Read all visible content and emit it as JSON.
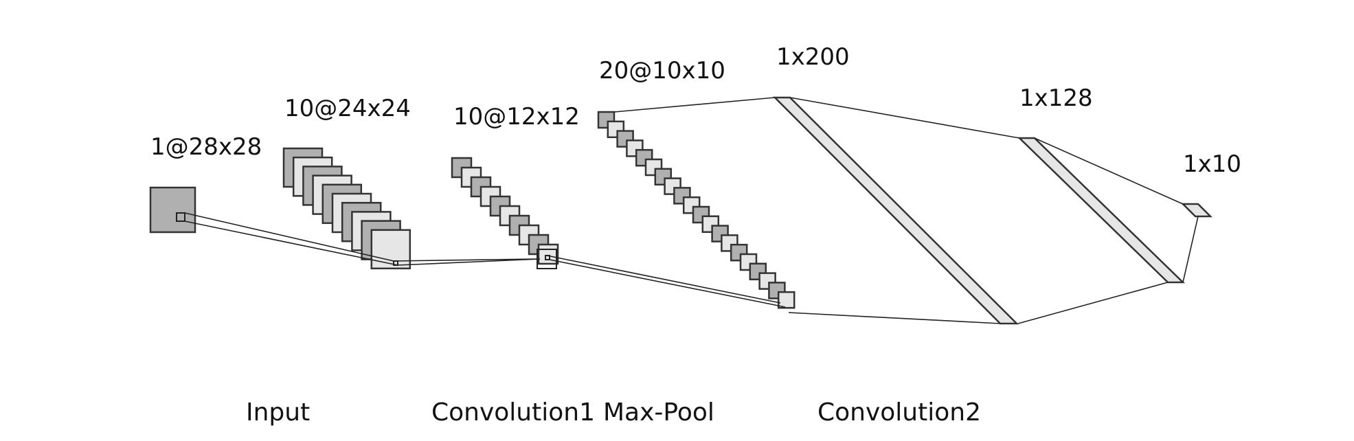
{
  "colors": {
    "dark_fill": "#b0b0b0",
    "light_fill": "#e6e6e6",
    "stroke": "#333333",
    "line": "#222222",
    "text": "#111111"
  },
  "layers": [
    {
      "id": "input",
      "label": "1@28x28",
      "maps": 1
    },
    {
      "id": "conv1",
      "label": "10@24x24",
      "maps": 10
    },
    {
      "id": "pool1",
      "label": "10@12x12",
      "maps": 10
    },
    {
      "id": "conv2",
      "label": "20@10x10",
      "maps": 20
    },
    {
      "id": "fc1",
      "label": "1x200"
    },
    {
      "id": "fc2",
      "label": "1x128"
    },
    {
      "id": "out",
      "label": "1x10"
    }
  ],
  "stages": [
    {
      "label": "Input"
    },
    {
      "label": "Convolution1"
    },
    {
      "label": "Max-Pool"
    },
    {
      "label": "Convolution2"
    }
  ]
}
